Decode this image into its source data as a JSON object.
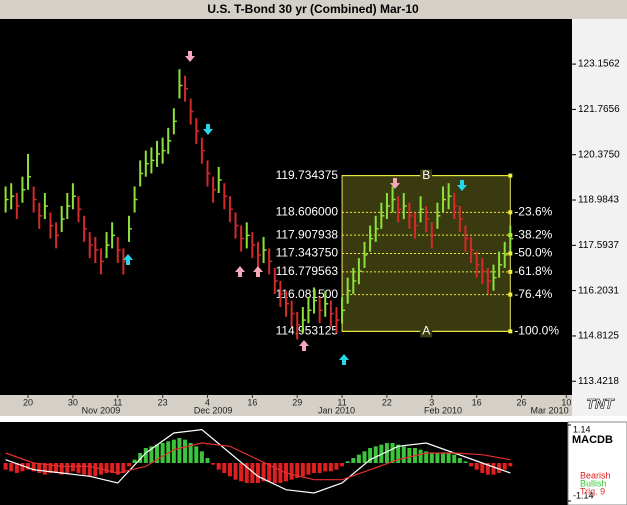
{
  "chart_data": [
    {
      "type": "hlc",
      "title": "U.S. T-Bond 30 yr (Combined) Mar-10",
      "logo": "TNT",
      "up_color": "#8ee03a",
      "down_color": "#d42a2a",
      "xlim": [
        -1,
        101
      ],
      "ylim": [
        113.0,
        124.54
      ],
      "xticks": [
        {
          "value": 4,
          "label": "20"
        },
        {
          "value": 12,
          "label": "30"
        },
        {
          "value": 20,
          "label": "11"
        },
        {
          "value": 28,
          "label": "23"
        },
        {
          "value": 36,
          "label": "4"
        },
        {
          "value": 44,
          "label": "16"
        },
        {
          "value": 52,
          "label": "29"
        },
        {
          "value": 60,
          "label": "11"
        },
        {
          "value": 68,
          "label": "22"
        },
        {
          "value": 76,
          "label": "3"
        },
        {
          "value": 84,
          "label": "16"
        },
        {
          "value": 92,
          "label": "26"
        },
        {
          "value": 100,
          "label": "10"
        }
      ],
      "month_ticks": [
        {
          "value": 17,
          "label": "Nov 2009"
        },
        {
          "value": 37,
          "label": "Dec 2009"
        },
        {
          "value": 59,
          "label": "Jan 2010"
        },
        {
          "value": 78,
          "label": "Feb 2010"
        },
        {
          "value": 97,
          "label": "Mar 2010"
        }
      ],
      "yticks": [
        123.1562,
        121.7656,
        {
          "value": 120.375,
          "label": "120.3750"
        },
        118.9843,
        117.5937,
        116.2031,
        114.8125,
        113.4218
      ],
      "high": [
        119.4,
        119.5,
        119.2,
        119.7,
        120.4,
        119.4,
        118.9,
        119.2,
        118.6,
        118.3,
        118.8,
        119.2,
        119.5,
        119.1,
        118.5,
        118.0,
        117.85,
        117.5,
        118.0,
        118.3,
        117.85,
        117.5,
        118.5,
        119.4,
        120.2,
        120.5,
        120.6,
        120.8,
        120.9,
        121.2,
        121.8,
        123.0,
        122.8,
        122.1,
        121.5,
        120.9,
        120.2,
        119.7,
        120.0,
        119.5,
        119.1,
        118.6,
        118.2,
        118.3,
        118.0,
        117.7,
        117.85,
        117.5,
        116.9,
        116.5,
        116.2,
        115.9,
        115.55,
        115.7,
        116.0,
        116.3,
        116.0,
        116.2,
        115.9,
        115.7,
        116.0,
        116.6,
        116.9,
        117.2,
        117.7,
        118.2,
        118.5,
        118.9,
        119.2,
        119.4,
        119.1,
        119.2,
        118.9,
        118.6,
        119.1,
        118.8,
        118.3,
        118.9,
        119.4,
        119.5,
        119.2,
        118.8,
        118.2,
        117.85,
        117.4,
        117.2,
        116.9,
        117.0,
        117.4,
        117.7,
        118.2
      ],
      "low": [
        118.6,
        118.7,
        118.4,
        118.9,
        119.3,
        118.6,
        118.1,
        118.4,
        117.8,
        117.5,
        118.0,
        118.4,
        118.7,
        118.3,
        117.7,
        117.2,
        117.05,
        116.7,
        117.2,
        117.5,
        117.05,
        116.7,
        117.7,
        118.6,
        119.4,
        119.7,
        119.8,
        120.0,
        120.1,
        120.4,
        121.0,
        122.1,
        122.0,
        121.3,
        120.7,
        120.1,
        119.4,
        118.9,
        119.2,
        118.7,
        118.3,
        117.8,
        117.4,
        117.5,
        117.2,
        116.9,
        117.05,
        116.7,
        116.1,
        115.7,
        115.4,
        115.1,
        114.7,
        114.9,
        115.2,
        115.5,
        115.2,
        115.4,
        115.1,
        114.9,
        115.2,
        115.8,
        116.1,
        116.4,
        116.9,
        117.4,
        117.7,
        118.1,
        118.4,
        118.6,
        118.3,
        118.4,
        118.1,
        117.8,
        118.3,
        118.0,
        117.5,
        118.1,
        118.6,
        118.7,
        118.4,
        118.0,
        117.4,
        117.05,
        116.6,
        116.4,
        116.1,
        116.2,
        116.6,
        116.9,
        117.4
      ],
      "close": [
        119.0,
        119.1,
        118.8,
        119.3,
        119.7,
        119.0,
        118.5,
        118.8,
        118.2,
        117.9,
        118.4,
        118.8,
        119.1,
        118.7,
        118.1,
        117.6,
        117.45,
        117.1,
        117.6,
        117.9,
        117.45,
        117.1,
        118.1,
        119.0,
        119.8,
        120.1,
        120.2,
        120.4,
        120.5,
        120.8,
        121.4,
        122.5,
        122.4,
        121.7,
        121.1,
        120.5,
        119.8,
        119.3,
        119.6,
        119.1,
        118.7,
        118.2,
        117.8,
        117.9,
        117.6,
        117.3,
        117.45,
        117.1,
        116.5,
        116.1,
        115.8,
        115.5,
        115.15,
        115.3,
        115.6,
        115.9,
        115.6,
        115.8,
        115.5,
        115.3,
        115.6,
        116.2,
        116.5,
        116.8,
        117.3,
        117.8,
        118.1,
        118.5,
        118.8,
        119.0,
        118.7,
        118.8,
        118.5,
        118.2,
        118.7,
        118.4,
        117.9,
        118.5,
        119.0,
        119.1,
        118.8,
        118.4,
        117.8,
        117.45,
        117.0,
        116.8,
        116.5,
        116.6,
        117.0,
        117.3,
        117.8
      ],
      "fibonacci": {
        "start": 60,
        "end": 90,
        "levels": [
          {
            "price": 119.734375,
            "marker": "B"
          },
          {
            "price": {
              "value": 118.606,
              "label": "118.606000"
            },
            "percent": {
              "value": -23.6,
              "label": "-23.6%"
            }
          },
          {
            "price": 117.907938,
            "percent": {
              "value": -38.2,
              "label": "-38.2%"
            }
          },
          {
            "price": {
              "value": 117.34375,
              "label": "117.343750"
            },
            "percent": {
              "value": -50.0,
              "label": "-50.0%"
            }
          },
          {
            "price": 116.779563,
            "percent": {
              "value": -61.8,
              "label": "-61.8%"
            }
          },
          {
            "price": {
              "value": 116.0815,
              "label": "116.081500"
            },
            "percent": {
              "value": -76.4,
              "label": "-76.4%"
            }
          },
          {
            "price": 114.953125,
            "percent": {
              "value": -100.0,
              "label": "-100.0%"
            },
            "marker": "A"
          }
        ]
      }
    },
    {
      "type": "macd",
      "label": "MACDB",
      "xlim": [
        -1,
        101
      ],
      "ylim": [
        -1.14,
        1.14
      ],
      "yticks": [
        1.14,
        -1.14
      ],
      "histogram": {
        "positive_name": "Bullish",
        "positive_color": "#3cc43c",
        "negative_name": "Bearish",
        "negative_color": "#e02020",
        "values": [
          -0.2,
          -0.25,
          -0.3,
          -0.25,
          -0.2,
          -0.25,
          -0.3,
          -0.35,
          -0.3,
          -0.3,
          -0.35,
          -0.3,
          -0.25,
          -0.3,
          -0.35,
          -0.4,
          -0.4,
          -0.35,
          -0.3,
          -0.3,
          -0.35,
          -0.3,
          -0.1,
          0.1,
          0.3,
          0.45,
          0.5,
          0.55,
          0.6,
          0.65,
          0.7,
          0.75,
          0.7,
          0.6,
          0.5,
          0.35,
          0.15,
          -0.05,
          -0.2,
          -0.3,
          -0.4,
          -0.5,
          -0.55,
          -0.6,
          -0.6,
          -0.6,
          -0.55,
          -0.55,
          -0.6,
          -0.6,
          -0.55,
          -0.5,
          -0.45,
          -0.4,
          -0.35,
          -0.3,
          -0.3,
          -0.25,
          -0.25,
          -0.2,
          -0.1,
          0.05,
          0.15,
          0.25,
          0.35,
          0.45,
          0.5,
          0.55,
          0.6,
          0.6,
          0.55,
          0.5,
          0.45,
          0.45,
          0.4,
          0.35,
          0.3,
          0.3,
          0.3,
          0.3,
          0.25,
          0.15,
          0.05,
          -0.1,
          -0.2,
          -0.3,
          -0.35,
          -0.35,
          -0.3,
          -0.2,
          -0.1
        ]
      },
      "lines": [
        {
          "color": "#ffffff",
          "x": [
            0,
            5,
            10,
            15,
            20,
            25,
            30,
            35,
            40,
            45,
            50,
            55,
            60,
            65,
            70,
            75,
            80,
            85,
            90
          ],
          "values": [
            0.1,
            -0.2,
            -0.3,
            -0.4,
            -0.6,
            0.3,
            0.9,
            1.0,
            0.3,
            -0.4,
            -0.8,
            -0.9,
            -0.6,
            0.1,
            0.5,
            0.6,
            0.3,
            0.0,
            -0.3
          ]
        },
        {
          "name": "Trig. 9",
          "color": "#e03030",
          "x": [
            0,
            5,
            10,
            15,
            20,
            25,
            30,
            35,
            40,
            45,
            50,
            55,
            60,
            65,
            70,
            75,
            80,
            85,
            90
          ],
          "values": [
            0.3,
            0.0,
            -0.1,
            -0.1,
            -0.3,
            -0.1,
            0.4,
            0.6,
            0.5,
            0.1,
            -0.3,
            -0.5,
            -0.5,
            -0.2,
            0.1,
            0.3,
            0.3,
            0.25,
            0.1
          ]
        }
      ]
    }
  ]
}
